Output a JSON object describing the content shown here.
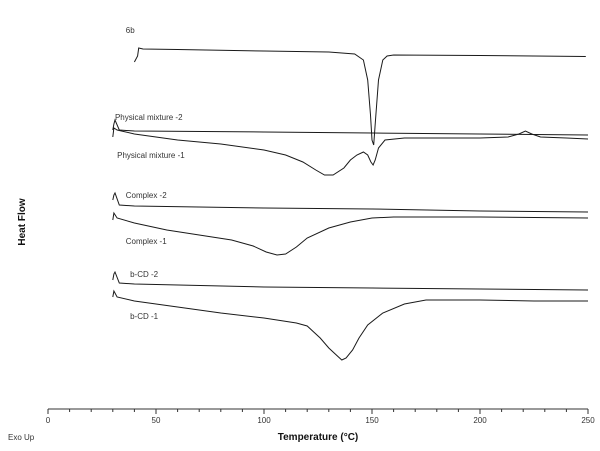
{
  "chart_data": {
    "type": "line",
    "xlabel": "Temperature (°C)",
    "ylabel": "Heat Flow",
    "corner_note": "Exo Up",
    "xlim": [
      0,
      250
    ],
    "x_ticks": [
      0,
      50,
      100,
      150,
      200,
      250
    ],
    "y_ticks_shown": false,
    "grid": false,
    "series": [
      {
        "name": "6b",
        "points": [
          [
            40,
            62
          ],
          [
            41.5,
            56
          ],
          [
            42,
            48
          ],
          [
            44,
            49
          ],
          [
            60,
            49.5
          ],
          [
            100,
            51
          ],
          [
            130,
            52
          ],
          [
            142,
            54
          ],
          [
            146,
            60
          ],
          [
            148,
            80
          ],
          [
            149.3,
            115
          ],
          [
            150,
            140
          ],
          [
            150.8,
            145
          ],
          [
            151.6,
            120
          ],
          [
            153,
            80
          ],
          [
            155,
            60
          ],
          [
            157,
            56
          ],
          [
            160,
            55
          ],
          [
            200,
            55.5
          ],
          [
            249,
            56.5
          ]
        ]
      },
      {
        "name": "Physical mixture -2",
        "points": [
          [
            30,
            130
          ],
          [
            30.5,
            124
          ],
          [
            31,
            120
          ],
          [
            33,
            130
          ],
          [
            40,
            131
          ],
          [
            100,
            132
          ],
          [
            150,
            133
          ],
          [
            200,
            134
          ],
          [
            250,
            135
          ]
        ]
      },
      {
        "name": "Physical mixture -1",
        "points": [
          [
            30,
            137
          ],
          [
            30.5,
            128
          ],
          [
            32,
            130
          ],
          [
            40,
            134
          ],
          [
            60,
            140
          ],
          [
            80,
            144
          ],
          [
            100,
            150
          ],
          [
            110,
            155
          ],
          [
            118,
            162
          ],
          [
            124,
            170
          ],
          [
            128,
            175
          ],
          [
            132,
            175
          ],
          [
            137,
            168
          ],
          [
            140,
            160
          ],
          [
            143,
            155
          ],
          [
            146,
            152
          ],
          [
            148,
            155
          ],
          [
            149.5,
            162
          ],
          [
            150.5,
            165
          ],
          [
            151.5,
            160
          ],
          [
            153,
            148
          ],
          [
            156,
            140
          ],
          [
            165,
            138
          ],
          [
            200,
            138
          ],
          [
            213,
            137
          ],
          [
            218,
            134
          ],
          [
            221,
            131
          ],
          [
            224,
            134
          ],
          [
            228,
            137
          ],
          [
            240,
            138
          ],
          [
            250,
            139
          ]
        ]
      },
      {
        "name": "Complex -2",
        "points": [
          [
            30,
            200
          ],
          [
            30.5,
            195
          ],
          [
            31,
            193
          ],
          [
            33,
            205
          ],
          [
            40,
            206
          ],
          [
            100,
            208
          ],
          [
            150,
            209
          ],
          [
            200,
            211
          ],
          [
            250,
            212
          ]
        ]
      },
      {
        "name": "Complex -1",
        "points": [
          [
            30,
            220
          ],
          [
            30.5,
            213
          ],
          [
            32,
            218
          ],
          [
            40,
            223
          ],
          [
            55,
            230
          ],
          [
            70,
            235
          ],
          [
            85,
            240
          ],
          [
            95,
            246
          ],
          [
            101,
            252
          ],
          [
            106,
            255
          ],
          [
            110,
            254
          ],
          [
            115,
            247
          ],
          [
            120,
            238
          ],
          [
            130,
            228
          ],
          [
            140,
            222
          ],
          [
            150,
            218
          ],
          [
            160,
            217
          ],
          [
            200,
            217
          ],
          [
            250,
            218
          ]
        ]
      },
      {
        "name": "b-CD -2",
        "points": [
          [
            30,
            280
          ],
          [
            30.5,
            274
          ],
          [
            31,
            272
          ],
          [
            33,
            283
          ],
          [
            40,
            284
          ],
          [
            100,
            287
          ],
          [
            150,
            288
          ],
          [
            200,
            289
          ],
          [
            250,
            290
          ]
        ]
      },
      {
        "name": "b-CD -1",
        "points": [
          [
            30,
            297
          ],
          [
            30.5,
            291
          ],
          [
            32,
            297
          ],
          [
            40,
            301
          ],
          [
            60,
            307
          ],
          [
            80,
            313
          ],
          [
            100,
            318
          ],
          [
            115,
            323
          ],
          [
            120,
            326
          ],
          [
            126,
            338
          ],
          [
            130,
            348
          ],
          [
            134,
            356
          ],
          [
            136,
            360
          ],
          [
            138,
            358
          ],
          [
            141,
            350
          ],
          [
            144,
            338
          ],
          [
            148,
            325
          ],
          [
            155,
            313
          ],
          [
            165,
            304
          ],
          [
            175,
            300
          ],
          [
            200,
            300
          ],
          [
            225,
            301
          ],
          [
            250,
            301
          ]
        ]
      }
    ],
    "labels": [
      {
        "series": "6b",
        "text": "6b",
        "at": [
          36,
          33
        ]
      },
      {
        "series": "Physical mixture -2",
        "text": "Physical mixture -2",
        "at": [
          31,
          120
        ]
      },
      {
        "series": "Physical mixture -1",
        "text": "Physical mixture -1",
        "at": [
          32,
          158
        ]
      },
      {
        "series": "Complex -2",
        "text": "Complex -2",
        "at": [
          36,
          198
        ]
      },
      {
        "series": "Complex -1",
        "text": "Complex -1",
        "at": [
          36,
          244
        ]
      },
      {
        "series": "b-CD -2",
        "text": "b-CD -2",
        "at": [
          38,
          277
        ]
      },
      {
        "series": "b-CD -1",
        "text": "b-CD -1",
        "at": [
          38,
          319
        ]
      }
    ]
  }
}
